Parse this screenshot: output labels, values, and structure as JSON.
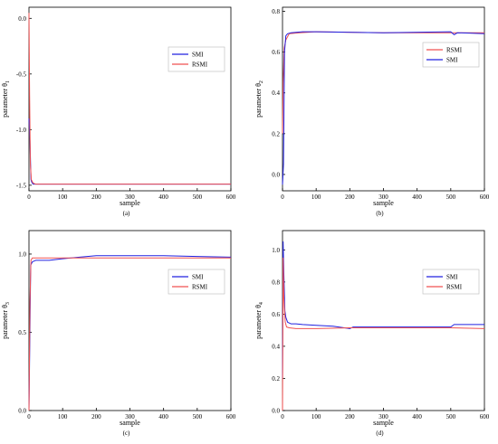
{
  "chart_data": [
    {
      "type": "line",
      "panel_label": "(a)",
      "xlabel": "",
      "ylabel": "parameter θ1",
      "xlim": [
        0,
        600
      ],
      "ylim": [
        -1.55,
        0.1
      ],
      "xticks": [
        0,
        100,
        200,
        300,
        400,
        500,
        600
      ],
      "yticks": [
        -1.5,
        -1.0,
        -0.5,
        0.0
      ],
      "ytick_labels": [
        "-1.5",
        "-1.0",
        "-0.5",
        "0.0"
      ],
      "legend_position": "top-right",
      "series": [
        {
          "name": "SMI",
          "color": "#2020e0",
          "x": [
            0,
            3,
            6,
            8,
            12,
            20,
            50,
            100,
            300,
            600
          ],
          "y": [
            -0.9,
            -1.1,
            -1.45,
            -1.47,
            -1.49,
            -1.49,
            -1.49,
            -1.49,
            -1.49,
            -1.49
          ]
        },
        {
          "name": "RSMI",
          "color": "#f05050",
          "x": [
            0,
            2,
            4,
            7,
            12,
            20,
            50,
            100,
            300,
            600
          ],
          "y": [
            0.05,
            -0.7,
            -1.3,
            -1.45,
            -1.48,
            -1.49,
            -1.49,
            -1.49,
            -1.49,
            -1.49
          ]
        }
      ]
    },
    {
      "type": "line",
      "panel_label": "(b)",
      "xlabel": "",
      "ylabel": "parameter θ2",
      "xlim": [
        0,
        600
      ],
      "ylim": [
        -0.08,
        0.82
      ],
      "xticks": [
        0,
        100,
        200,
        300,
        400,
        500,
        600
      ],
      "yticks": [
        0.0,
        0.2,
        0.4,
        0.6,
        0.8
      ],
      "ytick_labels": [
        "0.0",
        "0.2",
        "0.4",
        "0.6",
        "0.8"
      ],
      "legend_position": "top-right",
      "series": [
        {
          "name": "RSMI",
          "color": "#f05050",
          "x": [
            0,
            2,
            5,
            10,
            20,
            50,
            100,
            300,
            500,
            600
          ],
          "y": [
            0.2,
            0.45,
            0.62,
            0.66,
            0.69,
            0.695,
            0.7,
            0.695,
            0.695,
            0.695
          ]
        },
        {
          "name": "SMI",
          "color": "#2020e0",
          "x": [
            0,
            3,
            6,
            10,
            15,
            25,
            60,
            100,
            300,
            500,
            510,
            520,
            600
          ],
          "y": [
            -0.05,
            0.05,
            0.6,
            0.68,
            0.69,
            0.695,
            0.7,
            0.7,
            0.695,
            0.7,
            0.685,
            0.695,
            0.69
          ]
        }
      ]
    },
    {
      "type": "line",
      "panel_label": "(c)",
      "xlabel": "",
      "ylabel": "parameter θ3",
      "xlim": [
        0,
        600
      ],
      "ylim": [
        0.0,
        1.15
      ],
      "xticks": [
        0,
        100,
        200,
        300,
        400,
        500,
        600
      ],
      "yticks": [
        0.0,
        0.5,
        1.0
      ],
      "ytick_labels": [
        "0.0",
        "0.5",
        "1.0"
      ],
      "legend_position": "top-right",
      "series": [
        {
          "name": "SMI",
          "color": "#2020e0",
          "x": [
            0,
            5,
            10,
            20,
            60,
            100,
            150,
            200,
            300,
            400,
            500,
            600
          ],
          "y": [
            0.0,
            0.93,
            0.95,
            0.96,
            0.96,
            0.97,
            0.98,
            0.99,
            0.99,
            0.99,
            0.985,
            0.98
          ]
        },
        {
          "name": "RSMI",
          "color": "#f05050",
          "x": [
            0,
            3,
            6,
            10,
            30,
            100,
            200,
            300,
            400,
            500,
            600
          ],
          "y": [
            0.0,
            0.7,
            0.96,
            0.975,
            0.975,
            0.975,
            0.975,
            0.975,
            0.975,
            0.975,
            0.975
          ]
        }
      ]
    },
    {
      "type": "line",
      "panel_label": "(d)",
      "xlabel": "",
      "ylabel": "parameter θ4",
      "xlim": [
        0,
        600
      ],
      "ylim": [
        0.0,
        1.12
      ],
      "xticks": [
        0,
        100,
        200,
        300,
        400,
        500,
        600
      ],
      "yticks": [
        0.0,
        0.2,
        0.4,
        0.6,
        0.8,
        1.0
      ],
      "ytick_labels": [
        "0.0",
        "0.2",
        "0.4",
        "0.6",
        "0.8",
        "1.0"
      ],
      "legend_position": "top-right",
      "series": [
        {
          "name": "SMI",
          "color": "#2020e0",
          "x": [
            0,
            2,
            4,
            7,
            10,
            15,
            25,
            40,
            60,
            100,
            150,
            200,
            210,
            300,
            400,
            500,
            510,
            600
          ],
          "y": [
            0.2,
            1.05,
            0.85,
            0.62,
            0.58,
            0.55,
            0.54,
            0.54,
            0.535,
            0.53,
            0.525,
            0.51,
            0.52,
            0.52,
            0.52,
            0.52,
            0.535,
            0.535
          ]
        },
        {
          "name": "RSMI",
          "color": "#f05050",
          "x": [
            0,
            2,
            4,
            8,
            12,
            20,
            40,
            100,
            200,
            300,
            400,
            500,
            600
          ],
          "y": [
            0.0,
            0.95,
            0.7,
            0.55,
            0.52,
            0.515,
            0.51,
            0.51,
            0.515,
            0.515,
            0.515,
            0.515,
            0.51
          ]
        }
      ]
    }
  ],
  "axis_xlabel": "sample"
}
